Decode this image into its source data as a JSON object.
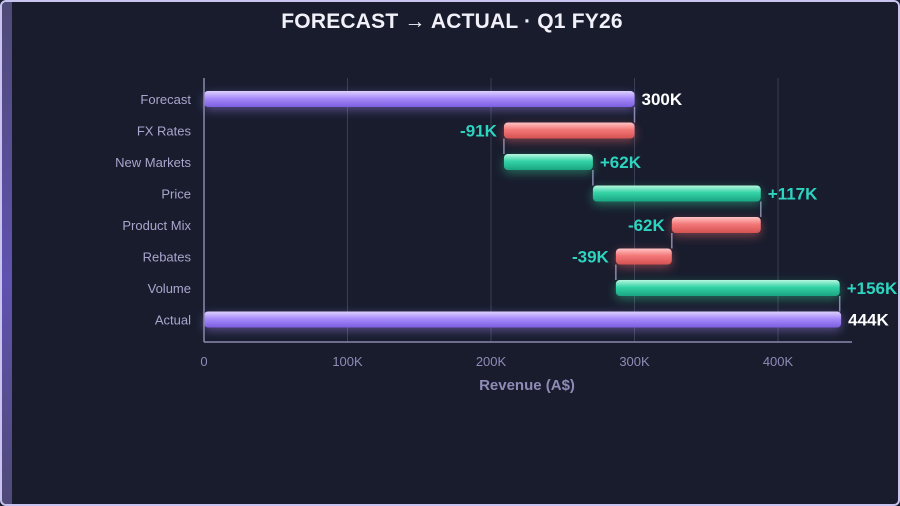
{
  "colors": {
    "background": "#181c2d",
    "total": "#a78bfa",
    "increase": "#34d399",
    "decrease": "#f87171",
    "delta_label": "#2dd4bf",
    "total_label": "#ffffff"
  },
  "chart_data": {
    "type": "bar",
    "subtype": "waterfall-horizontal",
    "title": "FORECAST → ACTUAL · Q1 FY26",
    "xlabel": "Revenue (A$)",
    "ylabel": "",
    "xlim": [
      0,
      450
    ],
    "x_ticks": [
      0,
      100,
      200,
      300,
      400
    ],
    "x_tick_labels": [
      "0",
      "100K",
      "200K",
      "300K",
      "400K"
    ],
    "grid": "vertical",
    "categories": [
      "Forecast",
      "FX Rates",
      "New Markets",
      "Price",
      "Product Mix",
      "Rebates",
      "Volume",
      "Actual"
    ],
    "bars": [
      {
        "category": "Forecast",
        "kind": "total",
        "start": 0,
        "end": 300,
        "label": "300K"
      },
      {
        "category": "FX Rates",
        "kind": "delta",
        "start": 300,
        "end": 209,
        "label": "-91K"
      },
      {
        "category": "New Markets",
        "kind": "delta",
        "start": 209,
        "end": 271,
        "label": "+62K"
      },
      {
        "category": "Price",
        "kind": "delta",
        "start": 271,
        "end": 388,
        "label": "+117K"
      },
      {
        "category": "Product Mix",
        "kind": "delta",
        "start": 388,
        "end": 326,
        "label": "-62K"
      },
      {
        "category": "Rebates",
        "kind": "delta",
        "start": 326,
        "end": 287,
        "label": "-39K"
      },
      {
        "category": "Volume",
        "kind": "delta",
        "start": 287,
        "end": 443,
        "label": "+156K"
      },
      {
        "category": "Actual",
        "kind": "total",
        "start": 0,
        "end": 444,
        "label": "444K"
      }
    ]
  }
}
